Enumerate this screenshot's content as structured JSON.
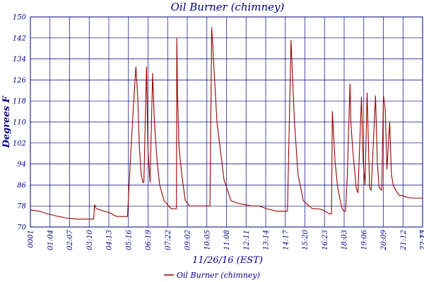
{
  "chart_data": {
    "type": "line",
    "title": "Oil Burner (chimney)",
    "xlabel": "11/26/16 (EST)",
    "ylabel": "Degrees F",
    "ylim": [
      70,
      150
    ],
    "yticks": [
      70,
      78,
      86,
      94,
      102,
      110,
      118,
      126,
      134,
      142,
      150
    ],
    "xlim": [
      1,
      2227
    ],
    "x_tick_labels": [
      "0001",
      "01:04",
      "02:07",
      "03:10",
      "04:13",
      "05:16",
      "06:19",
      "07:22",
      "09:02",
      "10:05",
      "11:08",
      "12:11",
      "13:14",
      "14:17",
      "15:20",
      "16:23",
      "18:03",
      "19:06",
      "20:09",
      "21:12",
      "22:15",
      "22:23"
    ],
    "grid": true,
    "legend": "bottom",
    "series": [
      {
        "name": "Oil Burner (chimney)",
        "color": "#990000",
        "x": [
          1,
          50,
          100,
          160,
          200,
          260,
          310,
          330,
          360,
          365,
          375,
          400,
          420,
          450,
          490,
          520,
          540,
          552,
          557,
          568,
          585,
          600,
          610,
          620,
          630,
          640,
          645,
          660,
          668,
          680,
          695,
          705,
          720,
          735,
          760,
          800,
          830,
          832,
          836,
          845,
          860,
          880,
          905,
          940,
          1000,
          1020,
          1030,
          1060,
          1100,
          1140,
          1180,
          1260,
          1300,
          1340,
          1400,
          1450,
          1460,
          1480,
          1500,
          1520,
          1550,
          1600,
          1630,
          1660,
          1700,
          1710,
          1715,
          1730,
          1745,
          1760,
          1770,
          1780,
          1790,
          1800,
          1815,
          1820,
          1830,
          1850,
          1860,
          1880,
          1890,
          1900,
          1912,
          1926,
          1935,
          1960,
          1970,
          1980,
          1995,
          2005,
          2015,
          2025,
          2040,
          2050,
          2060,
          2075,
          2085,
          2095,
          2110,
          2130,
          2160,
          2190,
          2227
        ],
        "y": [
          76.5,
          76,
          75,
          74,
          73.5,
          73,
          73,
          73,
          73,
          78.5,
          77,
          76.5,
          76,
          75.5,
          74,
          74,
          74,
          74,
          80,
          95,
          115,
          131,
          120,
          100,
          90,
          87,
          87,
          131,
          100,
          87,
          128.5,
          110,
          95,
          86,
          80,
          77,
          77,
          142,
          120,
          100,
          90,
          80,
          78,
          78,
          78,
          78,
          146,
          110,
          88,
          80,
          79,
          78,
          78,
          77,
          76,
          76,
          76,
          141,
          110,
          90,
          80,
          77,
          77,
          76.5,
          75,
          75,
          114,
          95,
          85,
          80,
          77,
          76,
          76,
          90,
          124.5,
          110,
          100,
          85,
          83,
          119.5,
          95,
          86,
          121,
          85,
          84,
          120,
          95,
          85,
          84,
          120,
          115,
          92,
          110,
          90,
          86,
          84,
          83,
          82,
          82,
          81.5,
          81,
          81,
          81
        ]
      }
    ]
  }
}
